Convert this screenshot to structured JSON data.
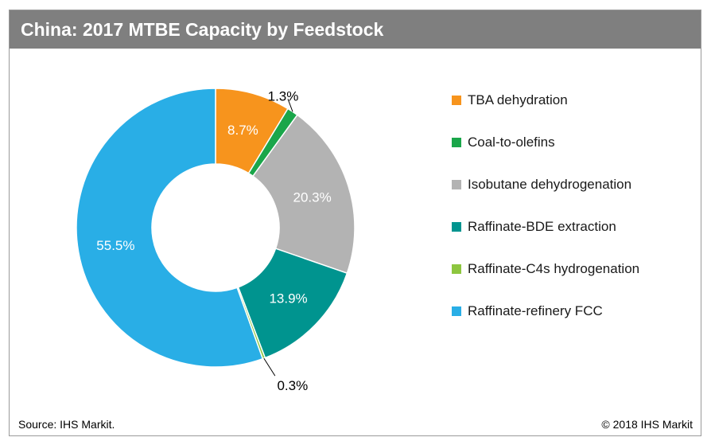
{
  "chart_data": {
    "type": "pie",
    "title": "China: 2017 MTBE Capacity by Feedstock",
    "slices": [
      {
        "label": "TBA dehydration",
        "value": 8.7,
        "value_label": "8.7%",
        "color": "#f7941d"
      },
      {
        "label": "Coal-to-olefins",
        "value": 1.3,
        "value_label": "1.3%",
        "color": "#1aa64a"
      },
      {
        "label": "Isobutane dehydrogenation",
        "value": 20.3,
        "value_label": "20.3%",
        "color": "#b3b3b3"
      },
      {
        "label": "Raffinate-BDE extraction",
        "value": 13.9,
        "value_label": "13.9%",
        "color": "#00948f"
      },
      {
        "label": "Raffinate-C4s hydrogenation",
        "value": 0.3,
        "value_label": "0.3%",
        "color": "#8dc63f"
      },
      {
        "label": "Raffinate-refinery FCC",
        "value": 55.5,
        "value_label": "55.5%",
        "color": "#29aee6"
      }
    ],
    "legend_placement": "right"
  },
  "footer": {
    "source": "Source: IHS Markit.",
    "copyright": "© 2018 IHS Markit"
  }
}
